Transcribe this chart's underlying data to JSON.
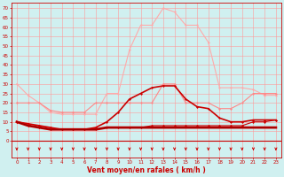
{
  "x": [
    0,
    1,
    2,
    3,
    4,
    5,
    6,
    7,
    8,
    9,
    10,
    11,
    12,
    13,
    14,
    15,
    16,
    17,
    18,
    19,
    20,
    21,
    22,
    23
  ],
  "series": [
    {
      "values": [
        30,
        24,
        20,
        15,
        14,
        14,
        14,
        14,
        25,
        25,
        48,
        61,
        61,
        70,
        68,
        61,
        61,
        52,
        28,
        28,
        28,
        27,
        24,
        24
      ],
      "color": "#ffaaaa",
      "lw": 0.8,
      "marker": "D",
      "ms": 1.5,
      "zorder": 2
    },
    {
      "values": [
        20,
        20,
        20,
        16,
        15,
        15,
        15,
        20,
        20,
        20,
        20,
        20,
        20,
        30,
        30,
        20,
        20,
        20,
        17,
        17,
        20,
        25,
        25,
        25
      ],
      "color": "#ff8888",
      "lw": 0.8,
      "marker": "D",
      "ms": 1.5,
      "zorder": 2
    },
    {
      "values": [
        10,
        9,
        8,
        7,
        6,
        6,
        6,
        7,
        10,
        15,
        22,
        25,
        28,
        29,
        29,
        22,
        18,
        17,
        12,
        10,
        10,
        11,
        11,
        11
      ],
      "color": "#cc0000",
      "lw": 1.2,
      "marker": "D",
      "ms": 1.5,
      "zorder": 3
    },
    {
      "values": [
        10,
        8,
        7,
        6,
        6,
        6,
        6,
        6,
        7,
        7,
        7,
        7,
        8,
        8,
        8,
        8,
        8,
        8,
        8,
        8,
        8,
        10,
        10,
        11
      ],
      "color": "#cc0000",
      "lw": 0.8,
      "marker": "D",
      "ms": 1.5,
      "zorder": 3
    },
    {
      "values": [
        10,
        8,
        7,
        6,
        6,
        6,
        6,
        6,
        7,
        7,
        7,
        7,
        7,
        7,
        7,
        7,
        7,
        7,
        7,
        7,
        7,
        7,
        7,
        7
      ],
      "color": "#cc0000",
      "lw": 2.0,
      "marker": null,
      "ms": 0,
      "zorder": 3
    },
    {
      "values": [
        10,
        8,
        7,
        6,
        6,
        6,
        6,
        6,
        7,
        7,
        7,
        7,
        7,
        7,
        7,
        7,
        7,
        7,
        7,
        7,
        7,
        7,
        7,
        7
      ],
      "color": "#880000",
      "lw": 0.7,
      "marker": null,
      "ms": 0,
      "zorder": 3
    }
  ],
  "xlabel": "Vent moyen/en rafales ( km/h )",
  "ylabel_ticks": [
    0,
    5,
    10,
    15,
    20,
    25,
    30,
    35,
    40,
    45,
    50,
    55,
    60,
    65,
    70
  ],
  "ylim": [
    -9,
    73
  ],
  "xlim": [
    -0.5,
    23.5
  ],
  "bg_color": "#d0f0f0",
  "grid_color": "#ff9999",
  "tick_color": "#cc0000",
  "label_color": "#cc0000",
  "arrow_color": "#cc0000"
}
